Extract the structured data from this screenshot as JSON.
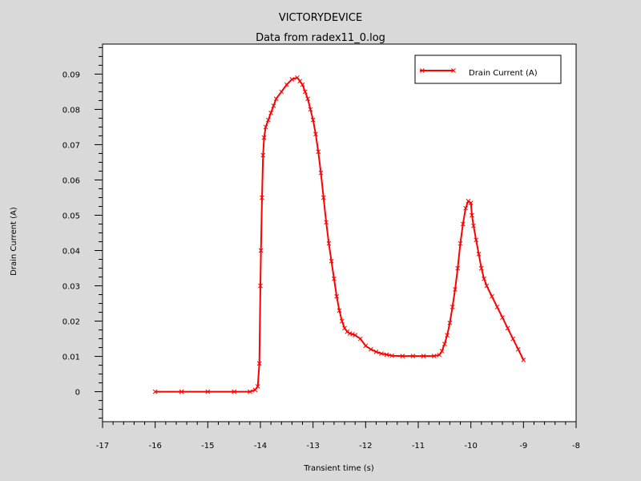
{
  "chart_data": {
    "type": "line",
    "title": "VICTORYDEVICE",
    "subtitle": "Data from radex11_0.log",
    "xlabel": "Transient time (s)",
    "ylabel": "Drain Current (A)",
    "xlim": [
      -17,
      -8
    ],
    "ylim": [
      -0.0085,
      0.0985
    ],
    "x_ticks": [
      -17,
      -16,
      -15,
      -14,
      -13,
      -12,
      -11,
      -10,
      -9,
      -8
    ],
    "x_tick_labels": [
      "-17",
      "-16",
      "-15",
      "-14",
      "-13",
      "-12",
      "-11",
      "-10",
      "-9",
      "-8"
    ],
    "y_ticks": [
      0,
      0.01,
      0.02,
      0.03,
      0.04,
      0.05,
      0.06,
      0.07,
      0.08,
      0.09
    ],
    "y_tick_labels": [
      "0",
      "0.01",
      "0.02",
      "0.03",
      "0.04",
      "0.05",
      "0.06",
      "0.07",
      "0.08",
      "0.09"
    ],
    "grid": false,
    "legend": {
      "position": "top-right"
    },
    "series": [
      {
        "name": "Drain Current (A)",
        "color": "#ff0000",
        "marker": "x",
        "x": [
          -16,
          -15.5,
          -15,
          -14.5,
          -14.2,
          -14.1,
          -14.05,
          -14.02,
          -14.0,
          -13.99,
          -13.97,
          -13.95,
          -13.93,
          -13.9,
          -13.85,
          -13.8,
          -13.75,
          -13.7,
          -13.6,
          -13.5,
          -13.4,
          -13.3,
          -13.25,
          -13.2,
          -13.15,
          -13.1,
          -13.05,
          -13.0,
          -12.95,
          -12.9,
          -12.85,
          -12.8,
          -12.75,
          -12.7,
          -12.65,
          -12.6,
          -12.55,
          -12.5,
          -12.45,
          -12.4,
          -12.35,
          -12.3,
          -12.25,
          -12.2,
          -12.1,
          -12.0,
          -11.9,
          -11.8,
          -11.7,
          -11.6,
          -11.5,
          -11.3,
          -11.1,
          -10.9,
          -10.7,
          -10.6,
          -10.55,
          -10.5,
          -10.45,
          -10.4,
          -10.35,
          -10.3,
          -10.25,
          -10.2,
          -10.15,
          -10.1,
          -10.05,
          -10.0,
          -9.98,
          -9.95,
          -9.9,
          -9.85,
          -9.8,
          -9.75,
          -9.7,
          -9.6,
          -9.5,
          -9.4,
          -9.3,
          -9.2,
          -9.1,
          -9.0
        ],
        "y": [
          0,
          0,
          0,
          0,
          0,
          0.0005,
          0.0015,
          0.008,
          0.03,
          0.04,
          0.055,
          0.067,
          0.072,
          0.075,
          0.077,
          0.079,
          0.081,
          0.083,
          0.085,
          0.087,
          0.0885,
          0.089,
          0.088,
          0.087,
          0.085,
          0.083,
          0.08,
          0.077,
          0.073,
          0.068,
          0.062,
          0.055,
          0.048,
          0.042,
          0.037,
          0.032,
          0.027,
          0.023,
          0.02,
          0.018,
          0.017,
          0.0165,
          0.0163,
          0.016,
          0.015,
          0.013,
          0.012,
          0.0113,
          0.0108,
          0.0105,
          0.0102,
          0.0101,
          0.0101,
          0.0101,
          0.0101,
          0.0104,
          0.0115,
          0.0135,
          0.016,
          0.0195,
          0.024,
          0.029,
          0.035,
          0.042,
          0.0475,
          0.052,
          0.054,
          0.0535,
          0.05,
          0.047,
          0.043,
          0.039,
          0.035,
          0.032,
          0.03,
          0.027,
          0.024,
          0.021,
          0.018,
          0.015,
          0.012,
          0.009
        ]
      }
    ]
  }
}
